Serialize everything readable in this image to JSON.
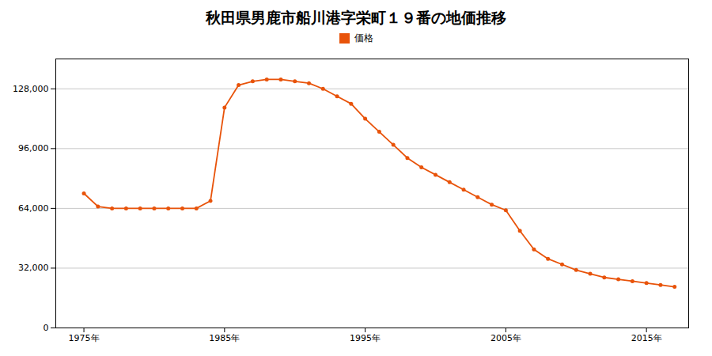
{
  "chart_data": {
    "type": "line",
    "title": "秋田県男鹿市船川港字栄町１９番の地価推移",
    "x": [
      1975,
      1976,
      1977,
      1978,
      1979,
      1980,
      1981,
      1982,
      1983,
      1984,
      1985,
      1986,
      1987,
      1988,
      1989,
      1990,
      1991,
      1992,
      1993,
      1994,
      1995,
      1996,
      1997,
      1998,
      1999,
      2000,
      2001,
      2002,
      2003,
      2004,
      2005,
      2006,
      2007,
      2008,
      2009,
      2010,
      2011,
      2012,
      2013,
      2014,
      2015,
      2016,
      2017
    ],
    "series": [
      {
        "name": "価格",
        "color": "#E8530A",
        "marker": "circle",
        "values": [
          72000,
          65000,
          64000,
          64000,
          64000,
          64000,
          64000,
          64000,
          64000,
          68000,
          118000,
          130000,
          132000,
          133000,
          133000,
          132000,
          131000,
          128000,
          124000,
          120000,
          112000,
          105000,
          98000,
          91000,
          86000,
          82000,
          78000,
          74000,
          70000,
          66000,
          63000,
          52000,
          42000,
          37000,
          34000,
          31000,
          29000,
          27000,
          26000,
          25000,
          24000,
          23000,
          22000
        ]
      }
    ],
    "xlim": [
      1973,
      2018
    ],
    "xticks": [
      {
        "value": 1975,
        "label": "1975年"
      },
      {
        "value": 1985,
        "label": "1985年"
      },
      {
        "value": 1995,
        "label": "1995年"
      },
      {
        "value": 2005,
        "label": "2005年"
      },
      {
        "value": 2015,
        "label": "2015年"
      }
    ],
    "ylim": [
      0,
      144000
    ],
    "yticks": [
      0,
      {
        "value": 32000,
        "label": "32,000"
      },
      {
        "value": 64000,
        "label": "64,000"
      },
      {
        "value": 96000,
        "label": "96,000"
      },
      {
        "value": 128000,
        "label": "128,000"
      }
    ],
    "grid": "y",
    "legend": "top"
  }
}
